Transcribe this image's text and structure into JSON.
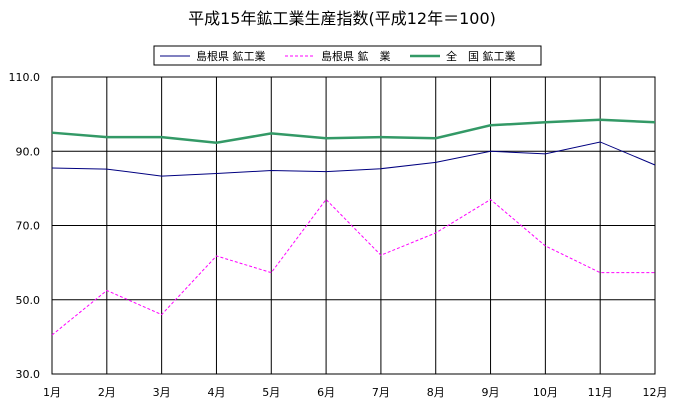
{
  "chart_data": {
    "type": "line",
    "title": "平成15年鉱工業生産指数(平成12年＝100)",
    "xlabel": "",
    "ylabel": "",
    "categories": [
      "1月",
      "2月",
      "3月",
      "4月",
      "5月",
      "6月",
      "7月",
      "8月",
      "9月",
      "10月",
      "11月",
      "12月"
    ],
    "y_ticks": [
      "30.0",
      "50.0",
      "70.0",
      "90.0",
      "110.0"
    ],
    "ylim": [
      30,
      110
    ],
    "grid": true,
    "legend_position": "top",
    "series": [
      {
        "name": "島根県 鉱工業",
        "color": "#000080",
        "style": "solid",
        "values": [
          85.5,
          85.2,
          83.3,
          84.0,
          84.8,
          84.5,
          85.3,
          87.0,
          90.0,
          89.3,
          92.5,
          86.3
        ]
      },
      {
        "name": "島根県 鉱　業",
        "color": "#FF00FF",
        "style": "dashed",
        "values": [
          40.5,
          52.5,
          46.0,
          61.8,
          57.3,
          77.0,
          62.0,
          68.0,
          77.0,
          64.5,
          57.3,
          57.3
        ]
      },
      {
        "name": "全　国 鉱工業",
        "color": "#339966",
        "style": "solid-thick",
        "values": [
          95.0,
          93.8,
          93.8,
          92.3,
          94.8,
          93.5,
          93.8,
          93.5,
          97.0,
          97.8,
          98.5,
          97.8
        ]
      }
    ]
  }
}
